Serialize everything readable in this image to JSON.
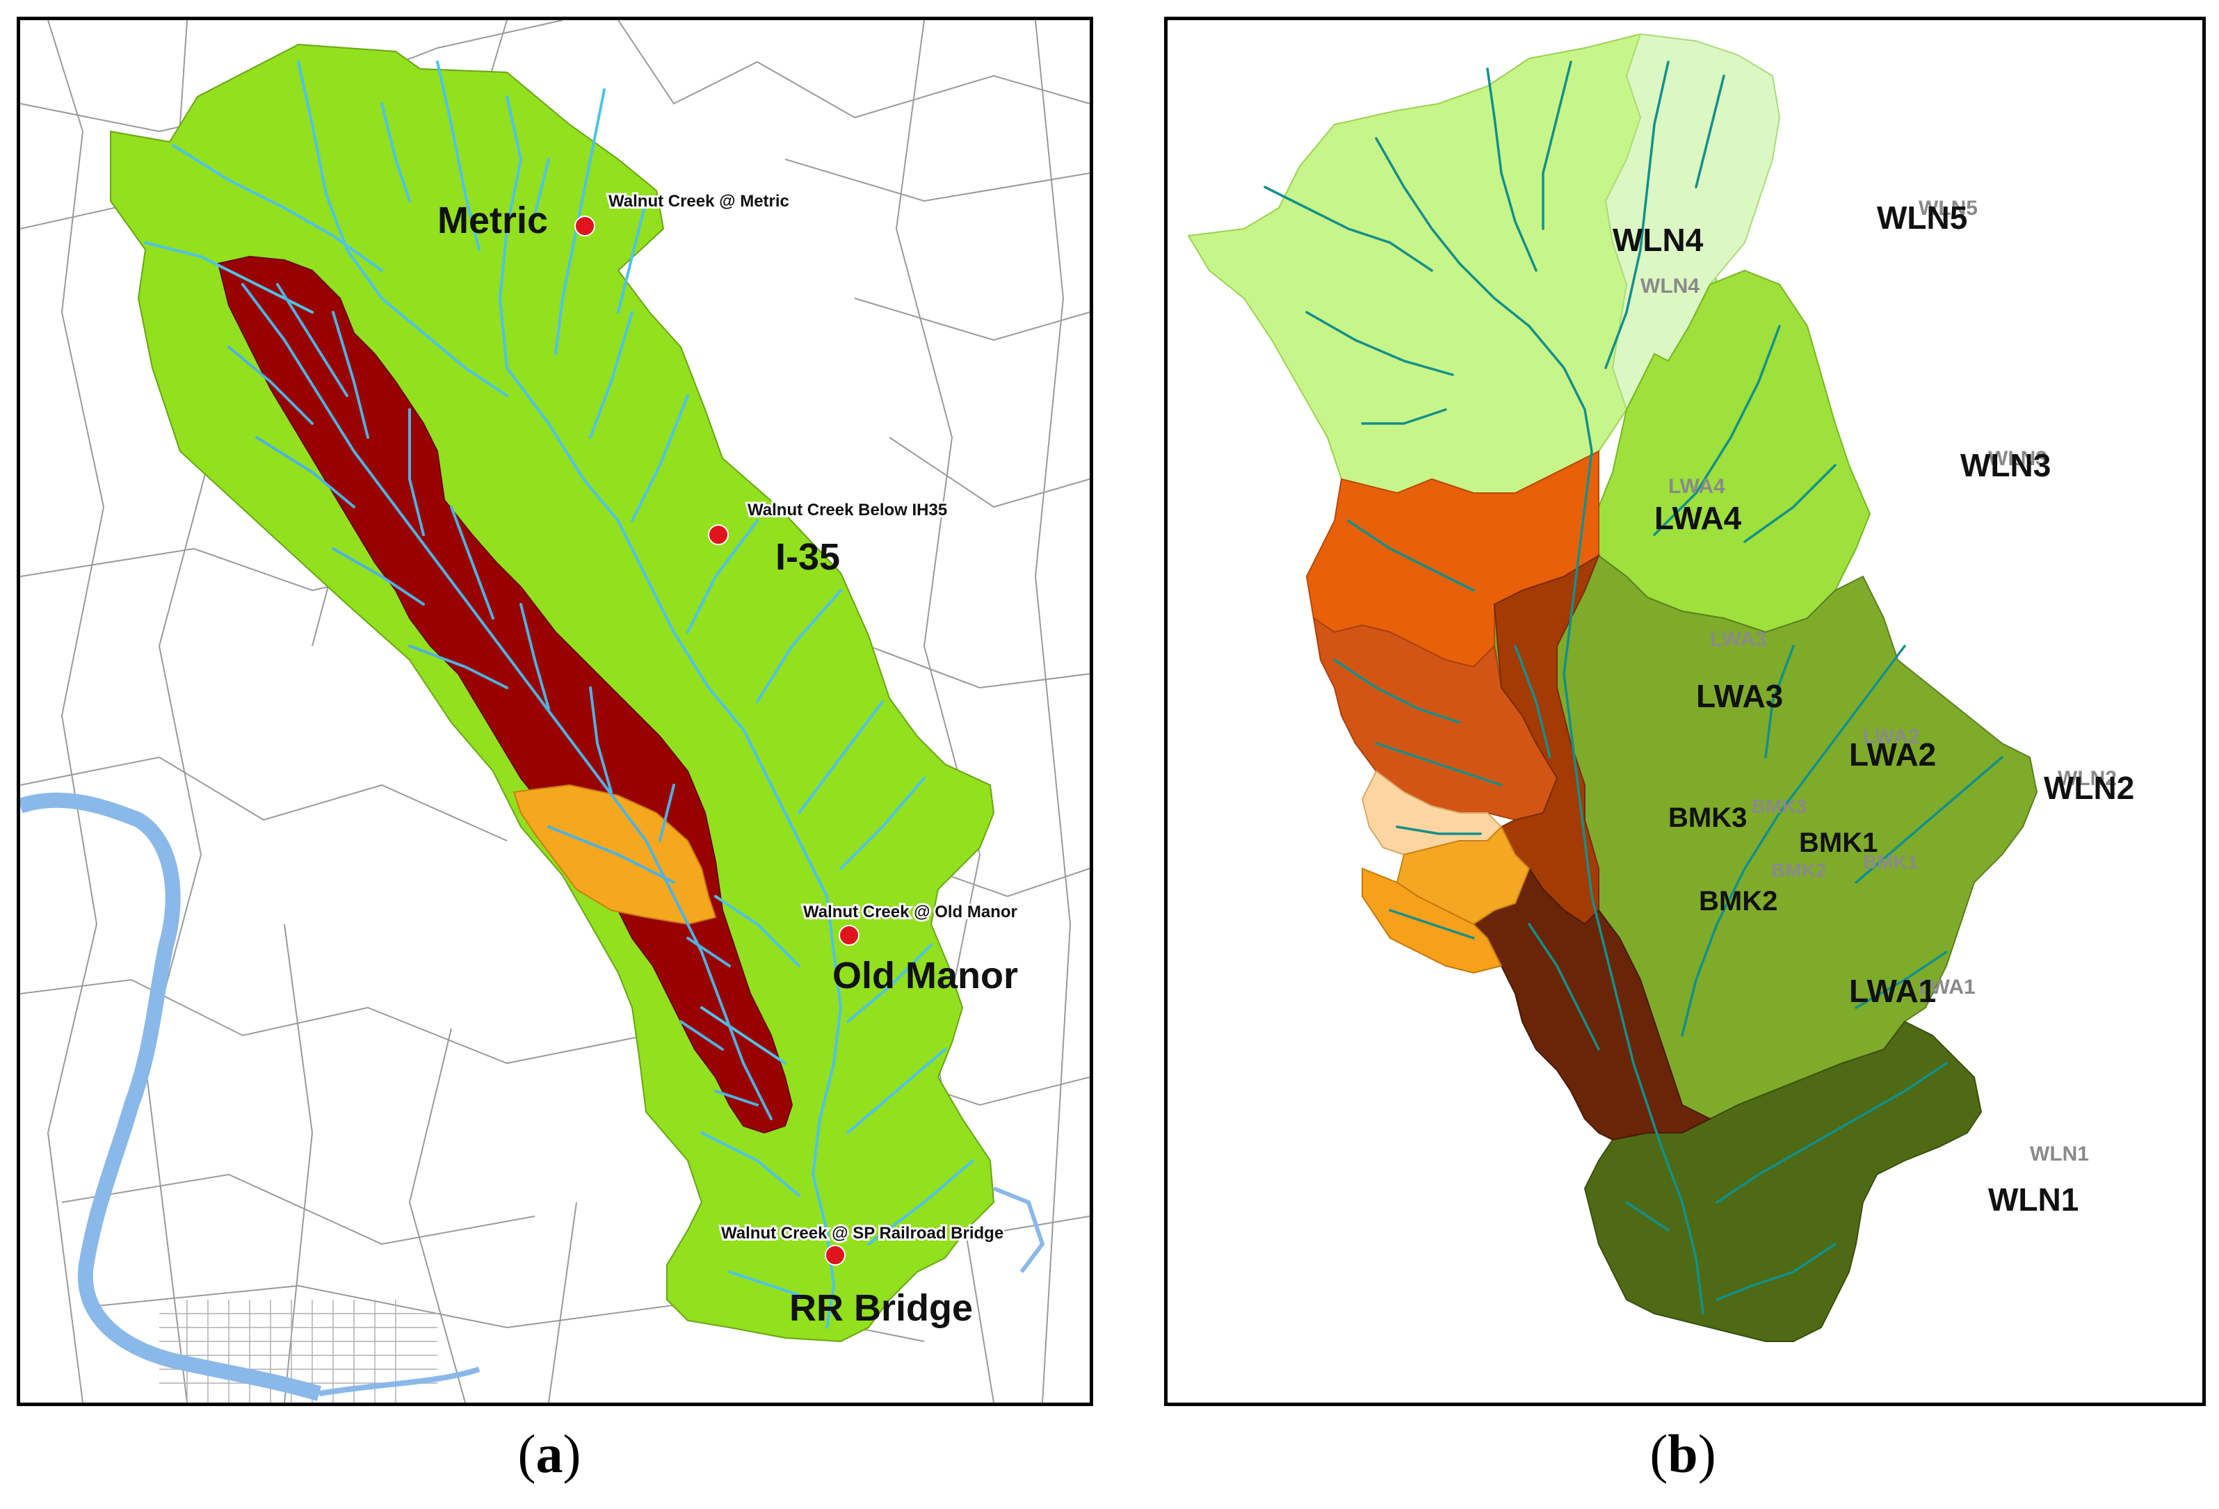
{
  "panel_a": {
    "caption_letter": "a",
    "stations": [
      {
        "name": "Walnut Creek @ Metric",
        "label": "Metric"
      },
      {
        "name": "Walnut Creek Below IH35",
        "label": "I-35"
      },
      {
        "name": "Walnut Creek @ Old Manor",
        "label": "Old Manor"
      },
      {
        "name": "Walnut Creek @ SP Railroad Bridge",
        "label": "RR Bridge"
      }
    ]
  },
  "panel_b": {
    "caption_letter": "b",
    "subbasins": [
      {
        "label": "WLN4",
        "ghost": "WLN4",
        "color": "#c8f58a"
      },
      {
        "label": "WLN5",
        "ghost": "WLN5",
        "color": "#dcf7c4"
      },
      {
        "label": "WLN3",
        "ghost": "WLN3",
        "color": "#9ee03c"
      },
      {
        "label": "WLN2",
        "ghost": "WLN2",
        "color": "#7fab2a"
      },
      {
        "label": "WLN1",
        "ghost": "WLN1",
        "color": "#4e6a14"
      },
      {
        "label": "LWA4",
        "ghost": "LWA4",
        "color": "#e8600a"
      },
      {
        "label": "LWA3",
        "ghost": "LWA3",
        "color": "#d35516"
      },
      {
        "label": "LWA2",
        "ghost": "LWA2",
        "color": "#a43a04"
      },
      {
        "label": "LWA1",
        "ghost": "LWA1",
        "color": "#6a2508"
      },
      {
        "label": "BMK3",
        "ghost": "BMK3",
        "color": "#fcd5a0"
      },
      {
        "label": "BMK1",
        "ghost": "BMK1",
        "color": "#f5a623"
      },
      {
        "label": "BMK2",
        "ghost": "BMK2",
        "color": "#f7a01a"
      }
    ]
  },
  "colors": {
    "basin_green": "#92e01e",
    "basin_red": "#990000",
    "basin_orange": "#f5a71e",
    "stream": "#4fc3e8",
    "stream_b": "#13908a",
    "station": "#e0141c",
    "river": "#8ab8e8"
  }
}
